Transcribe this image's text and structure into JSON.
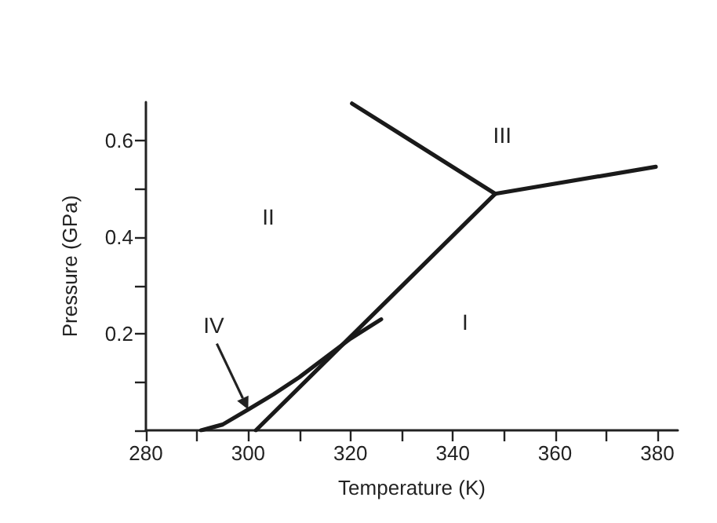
{
  "chart_data": {
    "type": "line",
    "xlabel": "Temperature (K)",
    "ylabel": "Pressure (GPa)",
    "xlim": [
      280,
      384
    ],
    "xticks": [
      280,
      {
        "value": 290,
        "label": null
      },
      300,
      {
        "value": 310,
        "label": null
      },
      320,
      {
        "value": 330,
        "label": null
      },
      340,
      {
        "value": 350,
        "label": null
      },
      360,
      {
        "value": 370,
        "label": null
      },
      380
    ],
    "ylim": [
      0,
      0.68
    ],
    "yticks": [
      {
        "value": 0,
        "label": null
      },
      {
        "value": 0.1,
        "label": null
      },
      0.2,
      {
        "value": 0.3,
        "label": null
      },
      0.4,
      {
        "value": 0.5,
        "label": null
      },
      0.6
    ],
    "grid": false,
    "marker": "none",
    "line_style": "solid",
    "series": [
      {
        "color": "#1a1a1a",
        "x": [
          301.5,
          348.3
        ],
        "values": [
          0,
          0.49
        ]
      },
      {
        "color": "#1a1a1a",
        "x": [
          320.3,
          348.3
        ],
        "values": [
          0.677,
          0.49
        ]
      },
      {
        "color": "#1a1a1a",
        "x": [
          348.3,
          379.7
        ],
        "values": [
          0.49,
          0.546
        ]
      },
      {
        "color": "#1a1a1a",
        "x": [
          290.8,
          295,
          300,
          305,
          310,
          315,
          320,
          326
        ],
        "values": [
          0,
          0.012,
          0.043,
          0.075,
          0.11,
          0.15,
          0.19,
          0.23
        ]
      }
    ],
    "annotations": [
      "I",
      "II",
      "III",
      {
        "text": "IV",
        "x": 300,
        "y": 0.043
      }
    ]
  }
}
